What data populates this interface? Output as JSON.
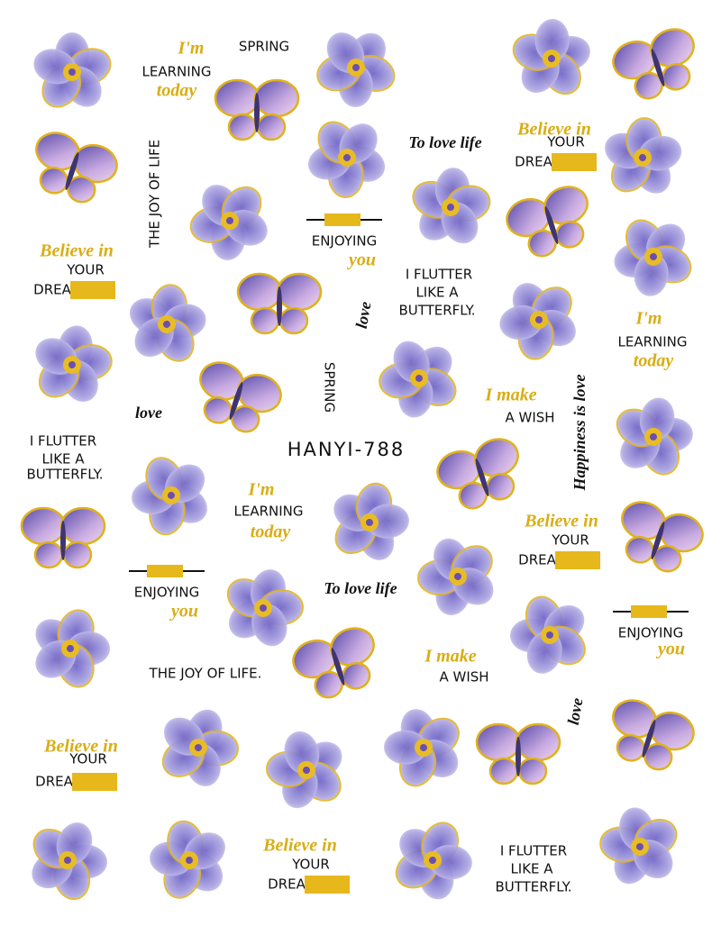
{
  "texts": [
    "I'm",
    "LEARNING",
    "today",
    "SPRING",
    "THE JOY OF LIFE",
    "To love life",
    "Believe in",
    "YOUR",
    "DREA",
    "Believe in",
    "YOUR",
    "DREA",
    "ENJOYING",
    "you",
    "I FLUTTER",
    "LIKE A",
    "BUTTERFLY.",
    "love",
    "I'm",
    "LEARNING",
    "today",
    "SPRING",
    "love",
    "I make",
    "A WISH",
    "Happiness is love",
    "I FLUTTER",
    "LIKE A",
    "BUTTERFLY.",
    "HANYI-788",
    "I'm",
    "LEARNING",
    "today",
    "Believe in",
    "YOUR",
    "DREA",
    "ENJOYING",
    "you",
    "To love life",
    "ENJOYING",
    "you",
    "THE JOY OF LIFE.",
    "I make",
    "A WISH",
    "love",
    "Believe in",
    "YOUR",
    "DREA",
    "Believe in",
    "YOUR",
    "DREA",
    "I FLUTTER",
    "LIKE A",
    "BUTTERFLY."
  ]
}
